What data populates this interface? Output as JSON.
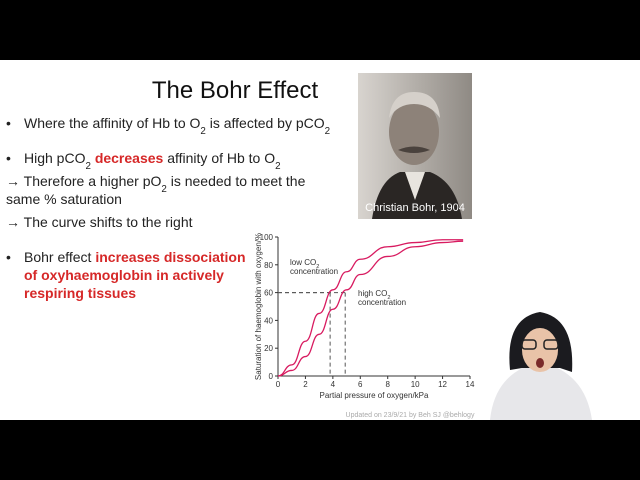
{
  "slide": {
    "title": "The Bohr Effect",
    "bullets": [
      {
        "marker": "•",
        "lines": [
          [
            {
              "text": "Where the affinity of Hb to O"
            },
            {
              "text": "2",
              "style": "sub"
            },
            {
              "text": " is affected by pCO"
            },
            {
              "text": "2",
              "style": "sub"
            }
          ]
        ]
      },
      {
        "marker": "•",
        "lines": [
          [
            {
              "text": "High pCO"
            },
            {
              "text": "2",
              "style": "sub"
            },
            {
              "text": " "
            },
            {
              "text": "decreases",
              "style": "red"
            },
            {
              "text": " affinity of Hb to O"
            },
            {
              "text": "2",
              "style": "sub"
            }
          ]
        ]
      },
      {
        "marker": "",
        "lines": [
          [
            {
              "text": "→ Therefore a higher pO"
            },
            {
              "text": "2",
              "style": "sub"
            },
            {
              "text": " is needed to meet the"
            }
          ],
          [
            {
              "text": "same % saturation"
            }
          ]
        ]
      },
      {
        "marker": "",
        "lines": [
          [
            {
              "text": "→ The curve shifts to the right"
            }
          ]
        ]
      },
      {
        "marker": "•",
        "lines": [
          [
            {
              "text": "Bohr effect "
            },
            {
              "text": "increases dissociation",
              "style": "red"
            }
          ],
          [
            {
              "text": "of oxyhaemoglobin in actively",
              "style": "red"
            }
          ],
          [
            {
              "text": "respiring tissues",
              "style": "red"
            }
          ]
        ]
      }
    ],
    "photo_caption": "Christian Bohr, 1904",
    "footer": "Updated on 23/9/21 by Beh SJ @behlogy"
  },
  "graph": {
    "type": "line",
    "x_label": "Partial pressure of oxygen/kPa",
    "y_label": "Saturation of haemoglobin with oxygen/%",
    "xlim": [
      0,
      14
    ],
    "ylim": [
      0,
      100
    ],
    "xticks": [
      0,
      2,
      4,
      6,
      8,
      10,
      12,
      14
    ],
    "yticks": [
      0,
      20,
      40,
      60,
      80,
      100
    ],
    "series": [
      {
        "color": "#d81b60",
        "x": [
          0,
          1,
          2,
          3,
          4,
          5,
          6,
          8,
          10,
          12,
          13.5
        ],
        "values": [
          0,
          8,
          25,
          45,
          62,
          75,
          84,
          93,
          96,
          98,
          98
        ]
      },
      {
        "color": "#d81b60",
        "x": [
          0,
          1,
          2,
          3,
          4,
          5,
          6,
          8,
          10,
          12,
          13.5
        ],
        "values": [
          0,
          4,
          14,
          30,
          48,
          62,
          73,
          86,
          93,
          96,
          97
        ]
      }
    ],
    "guides": [
      {
        "x": 3.8,
        "y": 60
      },
      {
        "x": 4.9,
        "y": 60
      }
    ],
    "annotations": [
      {
        "lines": [
          [
            {
              "text": "low CO"
            },
            {
              "text": "2",
              "style": "sub"
            }
          ],
          [
            {
              "text": "concentration"
            }
          ]
        ]
      },
      {
        "lines": [
          [
            {
              "text": "high CO"
            },
            {
              "text": "2",
              "style": "sub"
            }
          ],
          [
            {
              "text": "concentration"
            }
          ]
        ]
      }
    ]
  }
}
